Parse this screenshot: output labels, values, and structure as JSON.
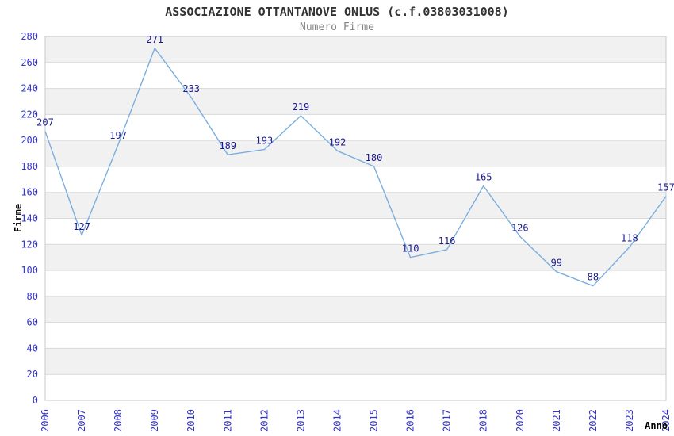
{
  "page": {
    "background": "#ffffff"
  },
  "chart_data": {
    "type": "line",
    "title": "ASSOCIAZIONE OTTANTANOVE ONLUS (c.f.03803031008)",
    "subtitle": "Numero Firme",
    "xlabel": "Anno",
    "ylabel": "Firme",
    "categories": [
      "2006",
      "2007",
      "2008",
      "2009",
      "2010",
      "2011",
      "2012",
      "2013",
      "2014",
      "2015",
      "2016",
      "2017",
      "2018",
      "2020",
      "2021",
      "2022",
      "2023",
      "2024"
    ],
    "values": [
      207,
      127,
      197,
      271,
      233,
      189,
      193,
      219,
      192,
      180,
      110,
      116,
      165,
      126,
      99,
      88,
      118,
      157
    ],
    "ylim": [
      0,
      280
    ],
    "ytick_step": 20,
    "grid": true,
    "banded_background": true,
    "legend": "none",
    "point_labels_visible": true,
    "colors": {
      "line": "#7aaede",
      "tick_label": "#3333cc",
      "point_label": "#1a1a8f",
      "band_gray": "#f1f1f1",
      "band_white": "#ffffff",
      "gridline": "#d9d9d9",
      "plot_border": "#c9c9c9",
      "title": "#333333",
      "subtitle": "#848484",
      "axis_title": "#000000"
    }
  }
}
